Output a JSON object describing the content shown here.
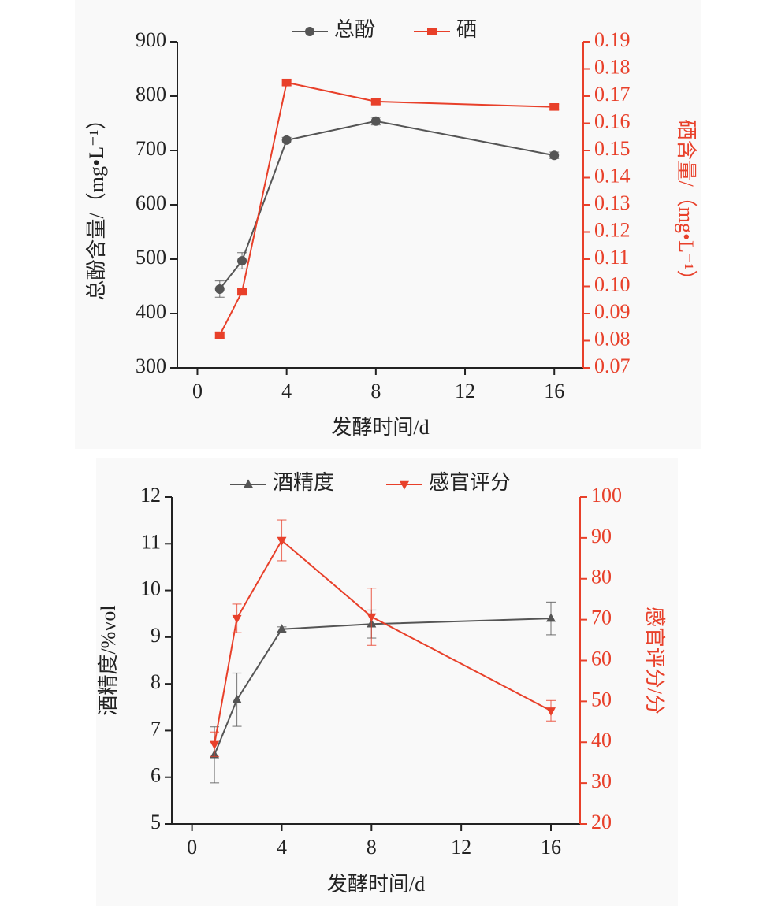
{
  "chart_data": [
    {
      "type": "line",
      "x": [
        1,
        2,
        4,
        8,
        16
      ],
      "xlim": [
        -0.9,
        17.3
      ],
      "xticks": [
        0,
        4,
        8,
        12,
        16
      ],
      "xlabel": "发酵时间/d",
      "ylabel": "总酚含量/（mg•L⁻¹）",
      "y2label": "硒含量/（mg•L⁻¹）",
      "ylim": [
        300,
        900
      ],
      "yticks": [
        300,
        400,
        500,
        600,
        700,
        800,
        900
      ],
      "y2lim": [
        0.07,
        0.19
      ],
      "y2ticks": [
        0.07,
        0.08,
        0.09,
        {
          "value": 0.1,
          "label": "0.10"
        },
        0.11,
        0.12,
        0.13,
        0.14,
        0.15,
        0.16,
        0.17,
        0.18,
        0.19
      ],
      "y2color": "#e8402a",
      "series": [
        {
          "name": "总酚",
          "color": "#555555",
          "marker": "circle",
          "values": [
            445,
            497,
            719,
            754,
            691
          ],
          "errors": [
            15,
            15,
            5,
            7,
            6
          ]
        },
        {
          "name": "硒",
          "color": "#e8402a",
          "marker": "square",
          "axis": "y2",
          "values": [
            0.082,
            0.098,
            0.175,
            0.168,
            0.166
          ],
          "errors": [
            0.001,
            0.001,
            0.001,
            0.001,
            0.001
          ]
        }
      ]
    },
    {
      "type": "line",
      "x": [
        1,
        2,
        4,
        8,
        16
      ],
      "xlim": [
        -0.9,
        17.3
      ],
      "xticks": [
        0,
        4,
        8,
        12,
        16
      ],
      "xlabel": "发酵时间/d",
      "ylabel": "酒精度/%vol",
      "y2label": "感官评分/分",
      "ylim": [
        5,
        12
      ],
      "yticks": [
        5,
        6,
        7,
        8,
        9,
        10,
        11,
        12
      ],
      "y2lim": [
        20,
        100
      ],
      "y2ticks": [
        20,
        30,
        40,
        50,
        60,
        70,
        80,
        90,
        100
      ],
      "y2color": "#e8402a",
      "series": [
        {
          "name": "酒精度",
          "color": "#555555",
          "marker": "triangle-up",
          "values": [
            6.48,
            7.66,
            9.17,
            9.28,
            9.4
          ],
          "errors": [
            0.6,
            0.57,
            0.05,
            0.3,
            0.35
          ]
        },
        {
          "name": "感官评分",
          "color": "#e8402a",
          "marker": "triangle-down",
          "axis": "y2",
          "values": [
            39.5,
            70.3,
            89.4,
            70.7,
            47.7
          ],
          "errors": [
            3,
            3.5,
            5,
            7,
            2.5
          ]
        }
      ]
    }
  ]
}
